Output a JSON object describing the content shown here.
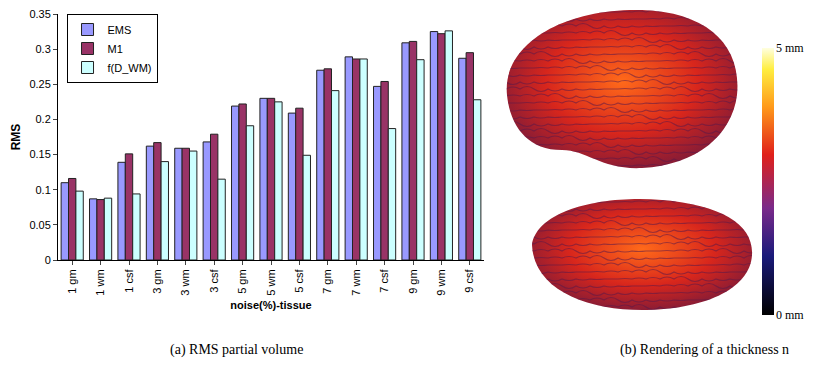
{
  "chart_data": {
    "type": "bar",
    "x_label": "noise(%)-tissue",
    "y_label": "RMS",
    "categories": [
      "1 gm",
      "1 wm",
      "1 csf",
      "3 gm",
      "3 wm",
      "3 csf",
      "5 gm",
      "5 wm",
      "5 csf",
      "7 gm",
      "7 wm",
      "7 csf",
      "9 gm",
      "9 wm",
      "9 csf"
    ],
    "series": [
      {
        "name": "EMS",
        "color": "#9999ff",
        "values": [
          0.11,
          0.087,
          0.139,
          0.162,
          0.159,
          0.168,
          0.219,
          0.23,
          0.209,
          0.27,
          0.289,
          0.247,
          0.309,
          0.325,
          0.287
        ]
      },
      {
        "name": "M1",
        "color": "#993366",
        "values": [
          0.116,
          0.086,
          0.151,
          0.167,
          0.159,
          0.179,
          0.222,
          0.23,
          0.216,
          0.272,
          0.286,
          0.254,
          0.311,
          0.322,
          0.295
        ]
      },
      {
        "name": "f(D_WM)",
        "color": "#ccffff",
        "values": [
          0.098,
          0.088,
          0.094,
          0.14,
          0.155,
          0.115,
          0.191,
          0.225,
          0.149,
          0.241,
          0.286,
          0.187,
          0.285,
          0.326,
          0.228
        ]
      }
    ],
    "ylim": [
      0,
      0.35
    ],
    "yticks": [
      0,
      0.05,
      0.1,
      0.15,
      0.2,
      0.25,
      0.3,
      0.35
    ],
    "grid": false,
    "legend": "upper left"
  },
  "captions": [
    "(a) RMS partial volume",
    "(b) Rendering of a thickness n"
  ],
  "colorbar": {
    "range": [
      0,
      5
    ],
    "ticks": [
      {
        "value": 5,
        "label": "5 mm"
      },
      {
        "value": 0,
        "label": "0 mm"
      }
    ]
  }
}
